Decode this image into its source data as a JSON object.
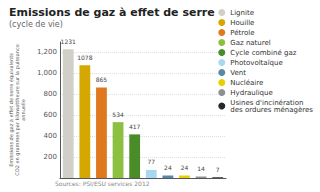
{
  "chart_data": {
    "type": "bar",
    "title": "Emissions de gaz à effet de serre",
    "subtitle": "(cycle de vie)",
    "ylabel": "Emissions de gaz à effet de serre équivalents\nCO2 en grammes par kilowattheure sur la puissance\nannuelle",
    "source": "Sources: PSI/ESU services 2012",
    "categories": [
      "Lignite",
      "Houille",
      "Pétrole",
      "Gaz naturel",
      "Cycle combiné gaz",
      "Photovoltaïque",
      "Vent",
      "Nucléaire",
      "Hydraulique",
      "Usines d'incinération\ndes ordures ménagères"
    ],
    "values": [
      1231,
      1078,
      865,
      534,
      417,
      77,
      24,
      24,
      14,
      7
    ],
    "colors": [
      "#d0cfc8",
      "#d4a800",
      "#e07820",
      "#8cc040",
      "#4a8c28",
      "#a8d8f0",
      "#5888a8",
      "#e8d000",
      "#909090",
      "#282828"
    ],
    "ylim": [
      0,
      1300
    ],
    "yticks": [
      200,
      400,
      600,
      800,
      1000,
      1200
    ],
    "grid": true,
    "legend": "right",
    "data_labels": true,
    "tick_labels": "y"
  }
}
